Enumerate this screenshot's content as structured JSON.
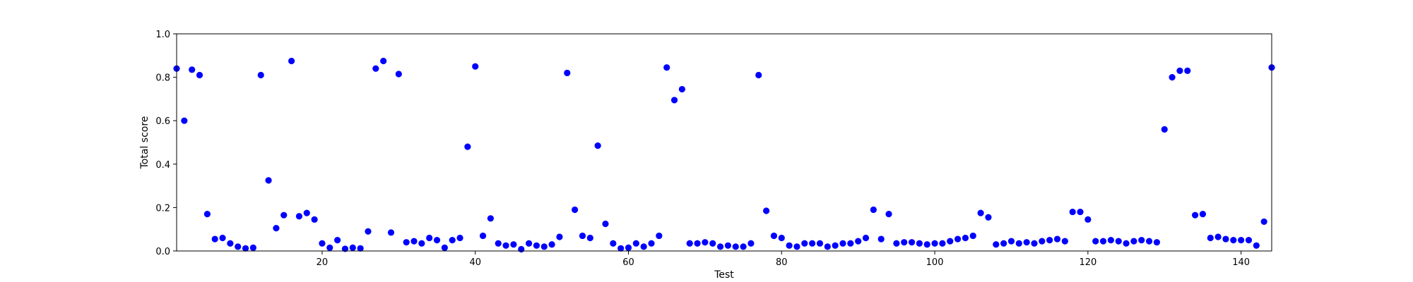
{
  "chart_data": {
    "type": "scatter",
    "title": "",
    "xlabel": "Test",
    "ylabel": "Total score",
    "xlim": [
      1,
      144
    ],
    "ylim": [
      0,
      1
    ],
    "xticks": [
      20,
      40,
      60,
      80,
      100,
      120,
      140
    ],
    "xtick_labels": [
      "20",
      "40",
      "60",
      "80",
      "100",
      "120",
      "140"
    ],
    "yticks": [
      0,
      0.2,
      0.4,
      0.6,
      0.8,
      1.0
    ],
    "ytick_labels": [
      "0.0",
      "0.2",
      "0.4",
      "0.6",
      "0.8",
      "1.0"
    ],
    "grid": false,
    "legend": "none",
    "marker_color": "#0000ff",
    "series": [
      {
        "x": [
          1,
          2,
          3,
          4,
          5,
          6,
          7,
          8,
          9,
          10,
          11,
          12,
          13,
          14,
          15,
          16,
          17,
          18,
          19,
          20,
          21,
          22,
          23,
          24,
          25,
          26,
          27,
          28,
          29,
          30,
          31,
          32,
          33,
          34,
          35,
          36,
          37,
          38,
          39,
          40,
          41,
          42,
          43,
          44,
          45,
          46,
          47,
          48,
          49,
          50,
          51,
          52,
          53,
          54,
          55,
          56,
          57,
          58,
          59,
          60,
          61,
          62,
          63,
          64,
          65,
          66,
          67,
          68,
          69,
          70,
          71,
          72,
          73,
          74,
          75,
          76,
          77,
          78,
          79,
          80,
          81,
          82,
          83,
          84,
          85,
          86,
          87,
          88,
          89,
          90,
          91,
          92,
          93,
          94,
          95,
          96,
          97,
          98,
          99,
          100,
          101,
          102,
          103,
          104,
          105,
          106,
          107,
          108,
          109,
          110,
          111,
          112,
          113,
          114,
          115,
          116,
          117,
          118,
          119,
          120,
          121,
          122,
          123,
          124,
          125,
          126,
          127,
          128,
          129,
          130,
          131,
          132,
          133,
          134,
          135,
          136,
          137,
          138,
          139,
          140,
          141,
          142,
          143,
          144
        ],
        "y": [
          0.84,
          0.6,
          0.835,
          0.81,
          0.17,
          0.055,
          0.06,
          0.035,
          0.02,
          0.012,
          0.015,
          0.81,
          0.325,
          0.105,
          0.165,
          0.875,
          0.16,
          0.175,
          0.145,
          0.035,
          0.015,
          0.05,
          0.01,
          0.015,
          0.012,
          0.09,
          0.84,
          0.875,
          0.085,
          0.815,
          0.04,
          0.045,
          0.035,
          0.06,
          0.05,
          0.015,
          0.05,
          0.06,
          0.48,
          0.85,
          0.07,
          0.15,
          0.035,
          0.025,
          0.03,
          0.008,
          0.035,
          0.025,
          0.02,
          0.03,
          0.065,
          0.82,
          0.19,
          0.07,
          0.06,
          0.485,
          0.125,
          0.035,
          0.012,
          0.015,
          0.035,
          0.02,
          0.035,
          0.07,
          0.845,
          0.695,
          0.745,
          0.035,
          0.035,
          0.04,
          0.035,
          0.02,
          0.025,
          0.02,
          0.02,
          0.035,
          0.81,
          0.185,
          0.07,
          0.06,
          0.025,
          0.02,
          0.035,
          0.035,
          0.035,
          0.02,
          0.025,
          0.035,
          0.035,
          0.045,
          0.06,
          0.19,
          0.055,
          0.17,
          0.035,
          0.04,
          0.04,
          0.035,
          0.03,
          0.035,
          0.035,
          0.045,
          0.055,
          0.06,
          0.07,
          0.175,
          0.155,
          0.03,
          0.035,
          0.045,
          0.035,
          0.04,
          0.035,
          0.045,
          0.05,
          0.055,
          0.045,
          0.18,
          0.18,
          0.145,
          0.045,
          0.045,
          0.05,
          0.045,
          0.035,
          0.045,
          0.05,
          0.045,
          0.04,
          0.56,
          0.8,
          0.83,
          0.83,
          0.165,
          0.17,
          0.06,
          0.065,
          0.055,
          0.05,
          0.05,
          0.05,
          0.025,
          0.135,
          0.845
        ]
      }
    ]
  }
}
